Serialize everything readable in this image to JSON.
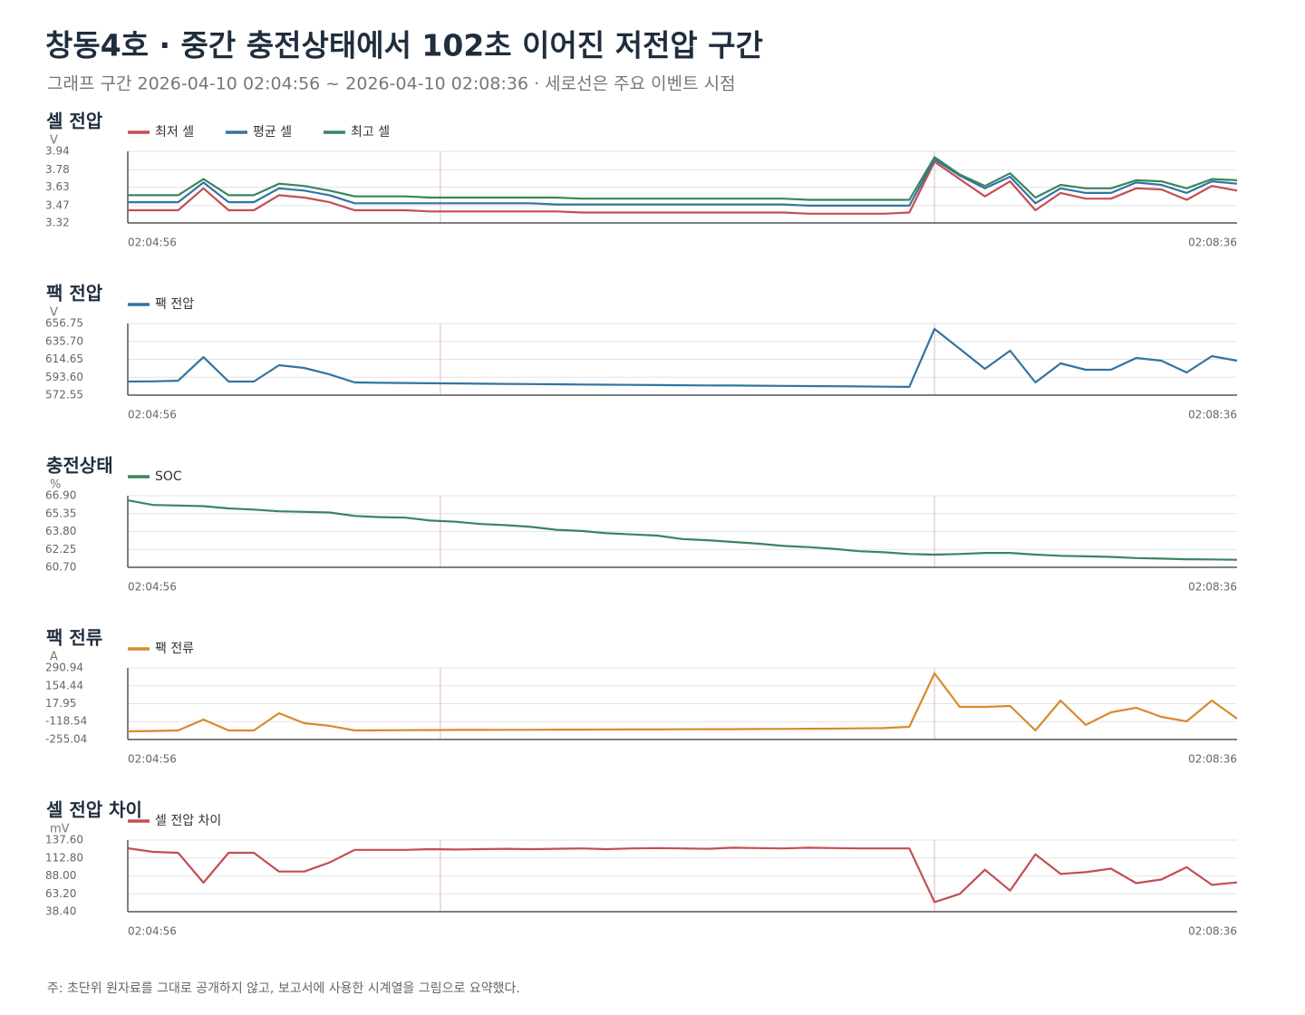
{
  "title": "창동4호 · 중간 충전상태에서 102초 이어진 저전압 구간",
  "subtitle": "그래프 구간 2026-04-10 02:04:56 ~ 2026-04-10 02:08:36 · 세로선은 주요 이벤트 시점",
  "note": "주: 초단위 원자료를 그대로 공개하지 않고, 보고서에 사용한 시계열을 그림으로 요약했다.",
  "chart_data": [
    {
      "type": "line",
      "title": "셀 전압",
      "unit": "V",
      "x": [
        "02:04:56",
        "02:05:01",
        "02:05:06",
        "02:05:11",
        "02:05:16",
        "02:05:21",
        "02:05:26",
        "02:05:31",
        "02:05:36",
        "02:05:41",
        "02:05:46",
        "02:05:51",
        "02:05:56",
        "02:06:01",
        "02:06:06",
        "02:06:11",
        "02:06:16",
        "02:06:21",
        "02:06:26",
        "02:06:31",
        "02:06:36",
        "02:06:41",
        "02:06:46",
        "02:06:51",
        "02:06:56",
        "02:07:01",
        "02:07:06",
        "02:07:11",
        "02:07:16",
        "02:07:21",
        "02:07:26",
        "02:07:31",
        "02:07:36",
        "02:07:41",
        "02:07:46",
        "02:07:51",
        "02:07:56",
        "02:08:01",
        "02:08:06",
        "02:08:11",
        "02:08:16",
        "02:08:21",
        "02:08:26",
        "02:08:31",
        "02:08:36"
      ],
      "xlim": [
        "02:04:56",
        "02:08:36"
      ],
      "xticks": [
        "02:04:56",
        "02:08:36"
      ],
      "events": [
        "02:05:58",
        "02:07:36"
      ],
      "ylim": [
        3.32,
        3.94
      ],
      "yticks": [
        3.94,
        3.78,
        3.63,
        3.47,
        3.32
      ],
      "grid": true,
      "series": [
        {
          "name": "최저 셀",
          "color": "#c44e52",
          "values": [
            3.43,
            3.43,
            3.43,
            3.62,
            3.43,
            3.43,
            3.56,
            3.54,
            3.5,
            3.43,
            3.43,
            3.43,
            3.42,
            3.42,
            3.42,
            3.42,
            3.42,
            3.42,
            3.41,
            3.41,
            3.41,
            3.41,
            3.41,
            3.41,
            3.41,
            3.41,
            3.41,
            3.4,
            3.4,
            3.4,
            3.4,
            3.41,
            3.85,
            3.7,
            3.55,
            3.68,
            3.43,
            3.58,
            3.53,
            3.53,
            3.62,
            3.61,
            3.52,
            3.64,
            3.6
          ]
        },
        {
          "name": "평균 셀",
          "color": "#3274a1",
          "values": [
            3.5,
            3.5,
            3.5,
            3.67,
            3.5,
            3.5,
            3.62,
            3.6,
            3.56,
            3.49,
            3.49,
            3.49,
            3.49,
            3.49,
            3.49,
            3.49,
            3.49,
            3.48,
            3.48,
            3.48,
            3.48,
            3.48,
            3.48,
            3.48,
            3.48,
            3.48,
            3.48,
            3.47,
            3.47,
            3.47,
            3.47,
            3.47,
            3.87,
            3.73,
            3.62,
            3.72,
            3.49,
            3.62,
            3.58,
            3.58,
            3.67,
            3.65,
            3.58,
            3.68,
            3.66
          ]
        },
        {
          "name": "최고 셀",
          "color": "#3a855d",
          "values": [
            3.56,
            3.56,
            3.56,
            3.7,
            3.56,
            3.56,
            3.66,
            3.64,
            3.6,
            3.55,
            3.55,
            3.55,
            3.54,
            3.54,
            3.54,
            3.54,
            3.54,
            3.54,
            3.53,
            3.53,
            3.53,
            3.53,
            3.53,
            3.53,
            3.53,
            3.53,
            3.53,
            3.52,
            3.52,
            3.52,
            3.52,
            3.52,
            3.89,
            3.74,
            3.64,
            3.75,
            3.54,
            3.65,
            3.62,
            3.62,
            3.69,
            3.68,
            3.62,
            3.7,
            3.69
          ]
        }
      ]
    },
    {
      "type": "line",
      "title": "팩 전압",
      "unit": "V",
      "x": [
        "02:04:56",
        "02:05:01",
        "02:05:06",
        "02:05:11",
        "02:05:16",
        "02:05:21",
        "02:05:26",
        "02:05:31",
        "02:05:36",
        "02:05:41",
        "02:05:46",
        "02:05:51",
        "02:05:56",
        "02:06:01",
        "02:06:06",
        "02:06:11",
        "02:06:16",
        "02:06:21",
        "02:06:26",
        "02:06:31",
        "02:06:36",
        "02:06:41",
        "02:06:46",
        "02:06:51",
        "02:06:56",
        "02:07:01",
        "02:07:06",
        "02:07:11",
        "02:07:16",
        "02:07:21",
        "02:07:26",
        "02:07:31",
        "02:07:36",
        "02:07:41",
        "02:07:46",
        "02:07:51",
        "02:07:56",
        "02:08:01",
        "02:08:06",
        "02:08:11",
        "02:08:16",
        "02:08:21",
        "02:08:26",
        "02:08:31",
        "02:08:36"
      ],
      "xlim": [
        "02:04:56",
        "02:08:36"
      ],
      "xticks": [
        "02:04:56",
        "02:08:36"
      ],
      "events": [
        "02:05:58",
        "02:07:36"
      ],
      "ylim": [
        572.55,
        656.75
      ],
      "yticks": [
        656.75,
        {
          "value": 635.7,
          "label": "635.70"
        },
        614.65,
        {
          "value": 593.6,
          "label": "593.60"
        },
        572.55
      ],
      "grid": true,
      "series": [
        {
          "name": "팩 전압",
          "color": "#3274a1",
          "values": [
            588.5,
            588.8,
            589.5,
            617.2,
            588.5,
            588.5,
            607.7,
            604.5,
            597.0,
            587.5,
            587.0,
            586.8,
            586.5,
            586.3,
            586.0,
            585.8,
            585.5,
            585.3,
            585.0,
            584.8,
            584.6,
            584.4,
            584.2,
            584.0,
            583.8,
            583.6,
            583.4,
            583.2,
            583.0,
            582.8,
            582.5,
            582.2,
            650.4,
            627.0,
            603.5,
            624.8,
            587.5,
            609.9,
            602.4,
            602.4,
            616.2,
            613.1,
            599.2,
            618.4,
            613.1
          ]
        }
      ]
    },
    {
      "type": "line",
      "title": "충전상태",
      "unit": "%",
      "x": [
        "02:04:56",
        "02:05:01",
        "02:05:06",
        "02:05:11",
        "02:05:16",
        "02:05:21",
        "02:05:26",
        "02:05:31",
        "02:05:36",
        "02:05:41",
        "02:05:46",
        "02:05:51",
        "02:05:56",
        "02:06:01",
        "02:06:06",
        "02:06:11",
        "02:06:16",
        "02:06:21",
        "02:06:26",
        "02:06:31",
        "02:06:36",
        "02:06:41",
        "02:06:46",
        "02:06:51",
        "02:06:56",
        "02:07:01",
        "02:07:06",
        "02:07:11",
        "02:07:16",
        "02:07:21",
        "02:07:26",
        "02:07:31",
        "02:07:36",
        "02:07:41",
        "02:07:46",
        "02:07:51",
        "02:07:56",
        "02:08:01",
        "02:08:06",
        "02:08:11",
        "02:08:16",
        "02:08:21",
        "02:08:26",
        "02:08:31",
        "02:08:36"
      ],
      "xlim": [
        "02:04:56",
        "02:08:36"
      ],
      "xticks": [
        "02:04:56",
        "02:08:36"
      ],
      "events": [
        "02:05:58",
        "02:07:36"
      ],
      "ylim": [
        60.7,
        66.9
      ],
      "yticks": [
        {
          "value": 66.9,
          "label": "66.90"
        },
        65.35,
        {
          "value": 63.8,
          "label": "63.80"
        },
        62.25,
        {
          "value": 60.7,
          "label": "60.70"
        }
      ],
      "grid": true,
      "series": [
        {
          "name": "SOC",
          "color": "#3a855d",
          "values": [
            66.5,
            66.1,
            66.05,
            66.0,
            65.8,
            65.7,
            65.55,
            65.5,
            65.45,
            65.15,
            65.05,
            65.0,
            64.75,
            64.65,
            64.45,
            64.35,
            64.2,
            63.95,
            63.85,
            63.65,
            63.55,
            63.45,
            63.15,
            63.05,
            62.9,
            62.75,
            62.55,
            62.45,
            62.3,
            62.1,
            62.0,
            61.85,
            61.8,
            61.85,
            61.95,
            61.95,
            61.8,
            61.7,
            61.65,
            61.6,
            61.5,
            61.45,
            61.4,
            61.38,
            61.35
          ]
        }
      ]
    },
    {
      "type": "line",
      "title": "팩 전류",
      "unit": "A",
      "x": [
        "02:04:56",
        "02:05:01",
        "02:05:06",
        "02:05:11",
        "02:05:16",
        "02:05:21",
        "02:05:26",
        "02:05:31",
        "02:05:36",
        "02:05:41",
        "02:05:46",
        "02:05:51",
        "02:05:56",
        "02:06:01",
        "02:06:06",
        "02:06:11",
        "02:06:16",
        "02:06:21",
        "02:06:26",
        "02:06:31",
        "02:06:36",
        "02:06:41",
        "02:06:46",
        "02:06:51",
        "02:06:56",
        "02:07:01",
        "02:07:06",
        "02:07:11",
        "02:07:16",
        "02:07:21",
        "02:07:26",
        "02:07:31",
        "02:07:36",
        "02:07:41",
        "02:07:46",
        "02:07:51",
        "02:07:56",
        "02:08:01",
        "02:08:06",
        "02:08:11",
        "02:08:16",
        "02:08:21",
        "02:08:26",
        "02:08:31",
        "02:08:36"
      ],
      "xlim": [
        "02:04:56",
        "02:08:36"
      ],
      "xticks": [
        "02:04:56",
        "02:08:36"
      ],
      "events": [
        "02:05:58",
        "02:07:36"
      ],
      "ylim": [
        -255.04,
        290.94
      ],
      "yticks": [
        290.94,
        154.44,
        17.95,
        -118.54,
        -255.04
      ],
      "grid": true,
      "series": [
        {
          "name": "팩 전류",
          "color": "#d98a2b",
          "values": [
            -192.8,
            -190,
            -186,
            -103,
            -186,
            -186,
            -54.6,
            -130.6,
            -151,
            -186,
            -185,
            -184,
            -183,
            -182,
            -182,
            -181,
            -181,
            -180,
            -180,
            -179,
            -178,
            -178,
            -177,
            -176,
            -176,
            -175,
            -174,
            -173,
            -172,
            -170,
            -168,
            -158,
            249.5,
            -6,
            -6,
            1,
            -186,
            42,
            -144,
            -48,
            -13,
            -82,
            -117,
            42,
            -96
          ]
        }
      ]
    },
    {
      "type": "line",
      "title": "셀 전압 차이",
      "unit": "mV",
      "x": [
        "02:04:56",
        "02:05:01",
        "02:05:06",
        "02:05:11",
        "02:05:16",
        "02:05:21",
        "02:05:26",
        "02:05:31",
        "02:05:36",
        "02:05:41",
        "02:05:46",
        "02:05:51",
        "02:05:56",
        "02:06:01",
        "02:06:06",
        "02:06:11",
        "02:06:16",
        "02:06:21",
        "02:06:26",
        "02:06:31",
        "02:06:36",
        "02:06:41",
        "02:06:46",
        "02:06:51",
        "02:06:56",
        "02:07:01",
        "02:07:06",
        "02:07:11",
        "02:07:16",
        "02:07:21",
        "02:07:26",
        "02:07:31",
        "02:07:36",
        "02:07:41",
        "02:07:46",
        "02:07:51",
        "02:07:56",
        "02:08:01",
        "02:08:06",
        "02:08:11",
        "02:08:16",
        "02:08:21",
        "02:08:26",
        "02:08:31",
        "02:08:36"
      ],
      "xlim": [
        "02:04:56",
        "02:08:36"
      ],
      "xticks": [
        "02:04:56",
        "02:08:36"
      ],
      "events": [
        "02:05:58",
        "02:07:36"
      ],
      "ylim": [
        38.4,
        137.6
      ],
      "yticks": [
        {
          "value": 137.6,
          "label": "137.60"
        },
        {
          "value": 112.8,
          "label": "112.80"
        },
        {
          "value": 88,
          "label": "88.00"
        },
        {
          "value": 63.2,
          "label": "63.20"
        },
        {
          "value": 38.4,
          "label": "38.40"
        }
      ],
      "grid": true,
      "series": [
        {
          "name": "셀 전압 차이",
          "color": "#c44e52",
          "values": [
            126.3,
            121.3,
            120.0,
            78.6,
            120.0,
            120.0,
            94.0,
            94.0,
            106.5,
            124.0,
            124.0,
            124.0,
            125.0,
            124.5,
            125.0,
            125.5,
            125.0,
            125.5,
            126.0,
            125.0,
            126.0,
            126.5,
            126.0,
            125.5,
            127.0,
            126.5,
            126.0,
            127.0,
            126.5,
            126.0,
            126.0,
            126.0,
            51.7,
            63.0,
            96.6,
            67.7,
            117.9,
            90.7,
            93.2,
            98.0,
            78.0,
            83.0,
            100.0,
            75.6,
            79.0
          ]
        }
      ]
    }
  ]
}
